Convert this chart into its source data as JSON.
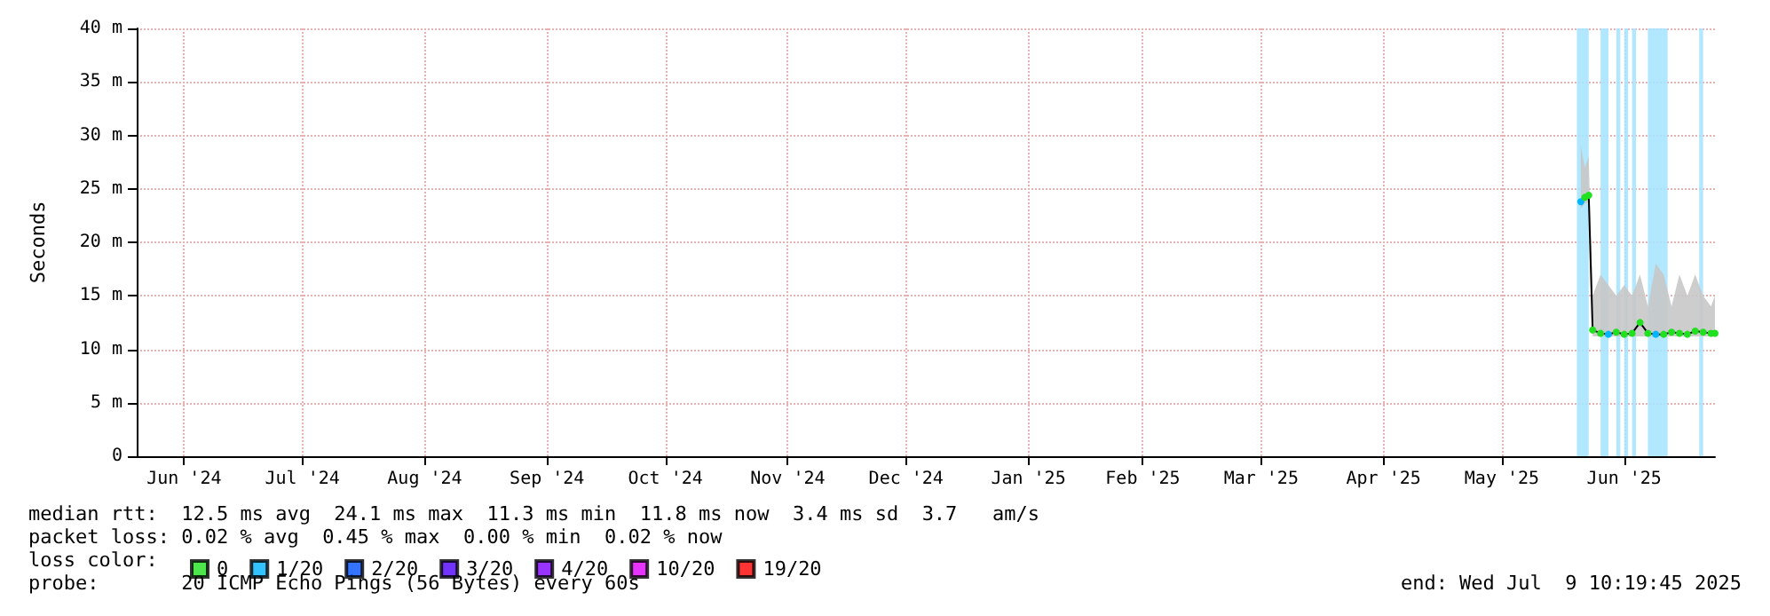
{
  "chart_data": {
    "type": "line",
    "ylabel": "Seconds",
    "xlim": [
      "2024-06-04",
      "2025-07-09"
    ],
    "xticks": [
      {
        "value": "2024-06-16",
        "label": "Jun '24"
      },
      {
        "value": "2024-07-16",
        "label": "Jul '24"
      },
      {
        "value": "2024-08-16",
        "label": "Aug '24"
      },
      {
        "value": "2024-09-16",
        "label": "Sep '24"
      },
      {
        "value": "2024-10-16",
        "label": "Oct '24"
      },
      {
        "value": "2024-11-16",
        "label": "Nov '24"
      },
      {
        "value": "2024-12-16",
        "label": "Dec '24"
      },
      {
        "value": "2025-01-16",
        "label": "Jan '25"
      },
      {
        "value": "2025-02-14",
        "label": "Feb '25"
      },
      {
        "value": "2025-03-16",
        "label": "Mar '25"
      },
      {
        "value": "2025-04-16",
        "label": "Apr '25"
      },
      {
        "value": "2025-05-16",
        "label": "May '25"
      },
      {
        "value": "2025-06-16",
        "label": "Jun '25"
      }
    ],
    "ylim": [
      0,
      40
    ],
    "yticks": [
      0,
      {
        "value": 5,
        "label": "5 m"
      },
      {
        "value": 10,
        "label": "10 m"
      },
      {
        "value": 15,
        "label": "15 m"
      },
      {
        "value": 20,
        "label": "20 m"
      },
      {
        "value": 25,
        "label": "25 m"
      },
      {
        "value": 30,
        "label": "30 m"
      },
      {
        "value": 35,
        "label": "35 m"
      },
      {
        "value": 40,
        "label": "40 m"
      }
    ],
    "grid": true,
    "legend": "bottom",
    "marker": "circle",
    "line_style": "solid",
    "series": [
      {
        "color": "#000000",
        "x": [
          "2025-06-05",
          "2025-06-06",
          "2025-06-07",
          "2025-06-08",
          "2025-06-10",
          "2025-06-12",
          "2025-06-14",
          "2025-06-16",
          "2025-06-18",
          "2025-06-20",
          "2025-06-22",
          "2025-06-24",
          "2025-06-26",
          "2025-06-28",
          "2025-06-30",
          "2025-07-02",
          "2025-07-04",
          "2025-07-06",
          "2025-07-08",
          "2025-07-09"
        ],
        "values": [
          23.8,
          24.2,
          24.4,
          11.8,
          11.5,
          11.4,
          11.6,
          11.4,
          11.5,
          12.5,
          11.5,
          11.4,
          11.4,
          11.6,
          11.5,
          11.4,
          11.7,
          11.6,
          11.5,
          11.5
        ],
        "colors": [
          "#00b4ff",
          "#20e020",
          "#20e020",
          "#20e020",
          "#20e020",
          "#00b4ff",
          "#20e020",
          "#20e020",
          "#20e020",
          "#20e020",
          "#20e020",
          "#00b4ff",
          "#20e020",
          "#20e020",
          "#20e020",
          "#20e020",
          "#20e020",
          "#20e020",
          "#20e020",
          "#20e020"
        ],
        "lower": [
          23.2,
          23.6,
          23.8,
          11.2,
          11.2,
          11.2,
          11.2,
          11.2,
          11.2,
          11.2,
          11.2,
          11.2,
          11.2,
          11.2,
          11.2,
          11.2,
          11.2,
          11.2,
          11.2,
          11.2
        ],
        "upper": [
          29,
          27,
          28,
          15,
          17,
          16,
          15,
          16,
          15,
          17,
          14,
          18,
          17,
          14,
          17,
          15,
          17,
          15,
          14,
          15
        ]
      },
      {
        "type": "scatter",
        "name": "0",
        "color": "#20e020"
      },
      {
        "type": "scatter",
        "name": "1/20",
        "color": "#00b4ff"
      },
      {
        "type": "scatter",
        "name": "2/20",
        "color": "#0050ff"
      },
      {
        "type": "scatter",
        "name": "3/20",
        "color": "#5000ff"
      },
      {
        "type": "scatter",
        "name": "4/20",
        "color": "#8000ff"
      },
      {
        "type": "scatter",
        "name": "10/20",
        "color": "#e000ff"
      },
      {
        "type": "scatter",
        "name": "19/20",
        "color": "#ff0000"
      }
    ],
    "bands": [
      {
        "axis": "x",
        "from": "2025-06-04",
        "to": "2025-06-07",
        "color": "#a8e4ff"
      },
      {
        "axis": "x",
        "from": "2025-06-10",
        "to": "2025-06-12",
        "color": "#a8e4ff"
      },
      {
        "axis": "x",
        "from": "2025-06-14",
        "to": "2025-06-15",
        "color": "#a8e4ff"
      },
      {
        "axis": "x",
        "from": "2025-06-16",
        "to": "2025-06-17",
        "color": "#a8e4ff"
      },
      {
        "axis": "x",
        "from": "2025-06-18",
        "to": "2025-06-19",
        "color": "#a8e4ff"
      },
      {
        "axis": "x",
        "from": "2025-06-22",
        "to": "2025-06-27",
        "color": "#a8e4ff"
      },
      {
        "axis": "x",
        "from": "2025-07-05",
        "to": "2025-07-06",
        "color": "#a8e4ff"
      }
    ],
    "annotations": [
      "median rtt:  12.5 ms avg  24.1 ms max  11.3 ms min  11.8 ms now  3.4 ms sd  3.7   am/s",
      "packet loss: 0.02 % avg  0.45 % max  0.00 % min  0.02 % now",
      "loss color:",
      "probe:       20 ICMP Echo Pings (56 Bytes) every 60s",
      "end: Wed Jul  9 10:19:45 2025"
    ]
  }
}
